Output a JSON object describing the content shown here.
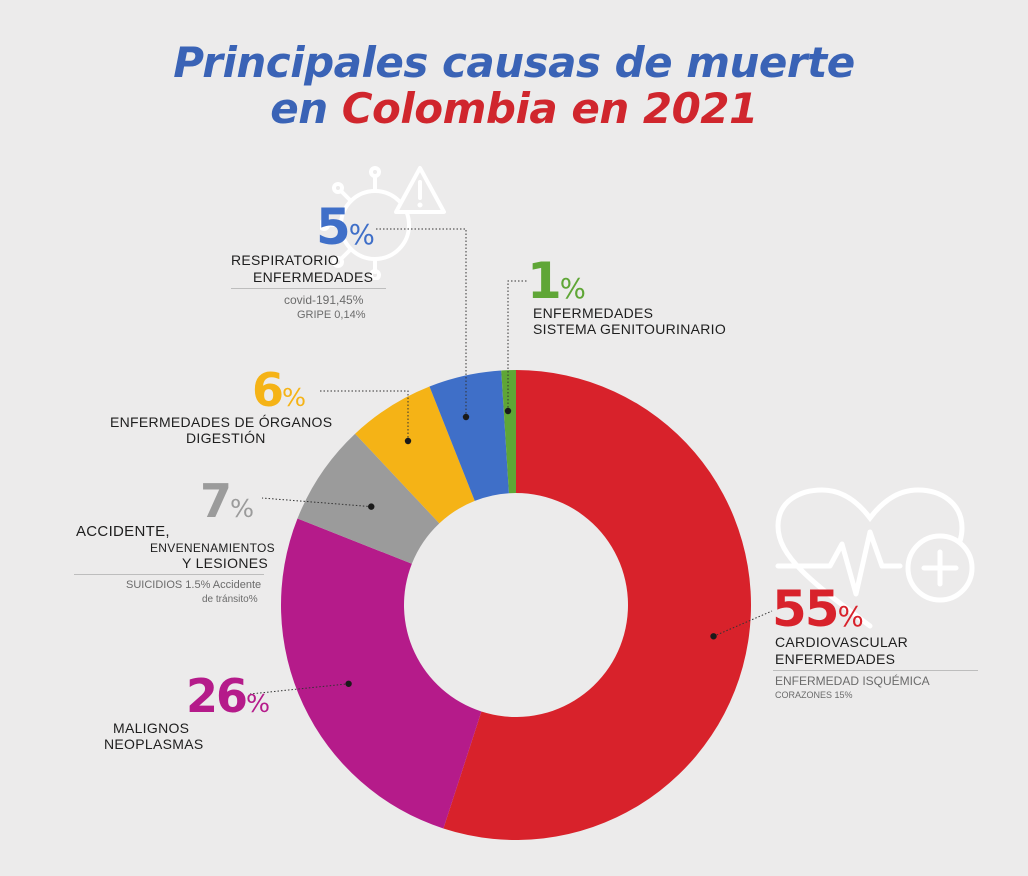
{
  "title": {
    "line1": "Principales causas de muerte",
    "line2_prefix": "en",
    "line2_highlight": "Colombia en 2021"
  },
  "chart_data": {
    "type": "pie",
    "donut": true,
    "unit": "%",
    "slices": [
      {
        "value": 55,
        "label": "CARDIOVASCULAR ENFERMEDADES",
        "color": "#d8222b"
      },
      {
        "value": 26,
        "label": "MALIGNOS NEOPLASMAS",
        "color": "#b51b8a"
      },
      {
        "value": 7,
        "label": "ACCIDENTE, ENVENENAMIENTOS Y LESIONES",
        "color": "#9b9b9b"
      },
      {
        "value": 6,
        "label": "ENFERMEDADES DE ÓRGANOS DIGESTIÓN",
        "color": "#f5b316"
      },
      {
        "value": 5,
        "label": "RESPIRATORIO ENFERMEDADES",
        "color": "#3f6fc8"
      },
      {
        "value": 1,
        "label": "ENFERMEDADES SISTEMA GENITOURINARIO",
        "color": "#5fa636"
      }
    ]
  },
  "labels": {
    "respiratorio": {
      "pct": "5",
      "line1": "RESPIRATORIO",
      "line2": "ENFERMEDADES",
      "sub1": "covid-191,45%",
      "sub2": "GRIPE 0,14%"
    },
    "genito": {
      "pct": "1",
      "line1": "ENFERMEDADES",
      "line2": "SISTEMA GENITOURINARIO"
    },
    "digestion": {
      "pct": "6",
      "line1": "ENFERMEDADES DE ÓRGANOS",
      "line2": "DIGESTIÓN"
    },
    "accidente": {
      "pct": "7",
      "line1": "ACCIDENTE,",
      "line2": "ENVENENAMIENTOS",
      "line3": "Y LESIONES",
      "sub1": "SUICIDIOS 1.5% Accidente",
      "sub2": "de tránsito%"
    },
    "malignos": {
      "pct": "26",
      "line1": "MALIGNOS",
      "line2": "NEOPLASMAS"
    },
    "cardio": {
      "pct": "55",
      "line1": "CARDIOVASCULAR",
      "line2": "ENFERMEDADES",
      "sub1": "ENFERMEDAD ISQUÉMICA",
      "sub2": "CORAZONES 15%"
    }
  },
  "percent_sign": "%",
  "icons": {
    "virus": "virus-warning-icon",
    "heart": "heart-health-icon"
  }
}
